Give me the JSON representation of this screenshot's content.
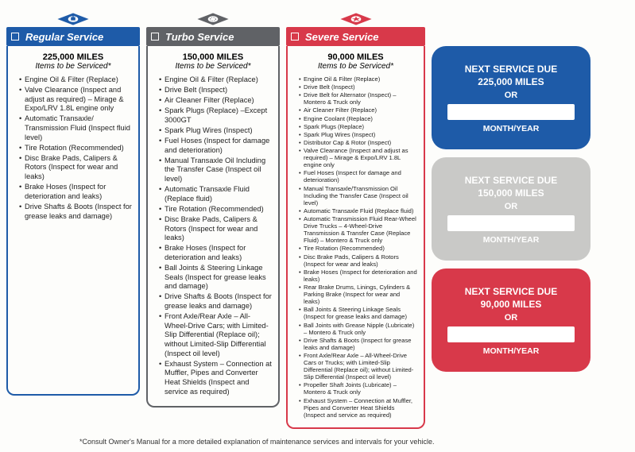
{
  "colors": {
    "blue": "#1e5ba8",
    "gray": "#606266",
    "red": "#d8394a",
    "ltgray": "#c9c9c7"
  },
  "columns": [
    {
      "title": "Regular Service",
      "miles": "225,000 MILES",
      "subtitle": "Items to be Serviced*",
      "items": [
        "Engine Oil & Filter (Replace)",
        "Valve Clearance (Inspect and adjust as required) – Mirage & Expo/LRV 1.8L engine only",
        "Automatic Transaxle/ Transmission Fluid (Inspect fluid level)",
        "Tire Rotation (Recommended)",
        "Disc Brake Pads, Calipers & Rotors (Inspect for wear and leaks)",
        "Brake Hoses (Inspect for deterioration and leaks)",
        "Drive Shafts & Boots (Inspect for grease leaks and damage)"
      ]
    },
    {
      "title": "Turbo Service",
      "miles": "150,000 MILES",
      "subtitle": "Items to be Serviced*",
      "items": [
        "Engine Oil & Filter (Replace)",
        "Drive Belt (Inspect)",
        "Air Cleaner Filter (Replace)",
        "Spark Plugs (Replace) –Except 3000GT",
        "Spark Plug Wires (Inspect)",
        "Fuel Hoses (Inspect for damage and deterioration)",
        "Manual Transaxle Oil Including the Transfer Case (Inspect oil level)",
        "Automatic Transaxle Fluid (Replace fluid)",
        "Tire Rotation (Recommended)",
        "Disc Brake Pads, Calipers & Rotors (Inspect for wear and leaks)",
        "Brake Hoses (Inspect for deterioration and leaks)",
        "Ball Joints & Steering Linkage Seals (Inspect for grease leaks and damage)",
        "Drive Shafts & Boots (Inspect for grease leaks and damage)",
        "Front Axle/Rear Axle – All-Wheel-Drive Cars; with Limited-Slip Differential (Replace oil); without Limited-Slip Differential (Inspect oil level)",
        "Exhaust System – Connection at Muffler, Pipes and Converter Heat Shields (Inspect and service as required)"
      ]
    },
    {
      "title": "Severe Service",
      "miles": "90,000 MILES",
      "subtitle": "Items to be Serviced*",
      "items": [
        "Engine Oil & Filter (Replace)",
        "Drive Belt (Inspect)",
        "Drive Belt for Alternator (Inspect) – Montero & Truck only",
        "Air Cleaner Filter (Replace)",
        "Engine Coolant (Replace)",
        "Spark Plugs (Replace)",
        "Spark Plug Wires (Inspect)",
        "Distributor Cap & Rotor (Inspect)",
        "Valve Clearance (Inspect and adjust as required) – Mirage & Expo/LRV 1.8L engine only",
        "Fuel Hoses (Inspect for damage and deterioration)",
        "Manual Transaxle/Transmission Oil Including the Transfer Case (Inspect oil level)",
        "Automatic Transaxle Fluid (Replace fluid)",
        "Automatic Transmission Fluid Rear-Wheel Drive Trucks – 4-Wheel-Drive Transmission & Transfer Case (Replace Fluid) – Montero & Truck only",
        "Tire Rotation (Recommended)",
        "Disc Brake Pads, Calipers & Rotors (Inspect for wear and leaks)",
        "Brake Hoses (Inspect for deterioration and leaks)",
        "Rear Brake Drums, Linings, Cylinders & Parking Brake (Inspect for wear and leaks)",
        "Ball Joints & Steering Linkage Seals (Inspect for grease leaks and damage)",
        "Ball Joints with Grease Nipple (Lubricate) – Montero & Truck only",
        "Drive Shafts & Boots (Inspect for grease leaks and damage)",
        "Front Axle/Rear Axle – All-Wheel-Drive Cars or Trucks; with Limited-Slip Differential (Replace oil); without Limited-Slip Differential (Inspect oil level)",
        "Propeller Shaft Joints (Lubricate) – Montero & Truck only",
        "Exhaust System – Connection at Muffler, Pipes and Converter Heat Shields (Inspect and service as required)"
      ]
    }
  ],
  "cards": [
    {
      "line1": "NEXT SERVICE DUE",
      "line2": "225,000 MILES",
      "or": "OR",
      "label": "MONTH/YEAR"
    },
    {
      "line1": "NEXT SERVICE DUE",
      "line2": "150,000 MILES",
      "or": "OR",
      "label": "MONTH/YEAR"
    },
    {
      "line1": "NEXT SERVICE DUE",
      "line2": "90,000 MILES",
      "or": "OR",
      "label": "MONTH/YEAR"
    }
  ],
  "footnote": "*Consult Owner's Manual for a more detailed explanation of maintenance services and intervals for your vehicle."
}
